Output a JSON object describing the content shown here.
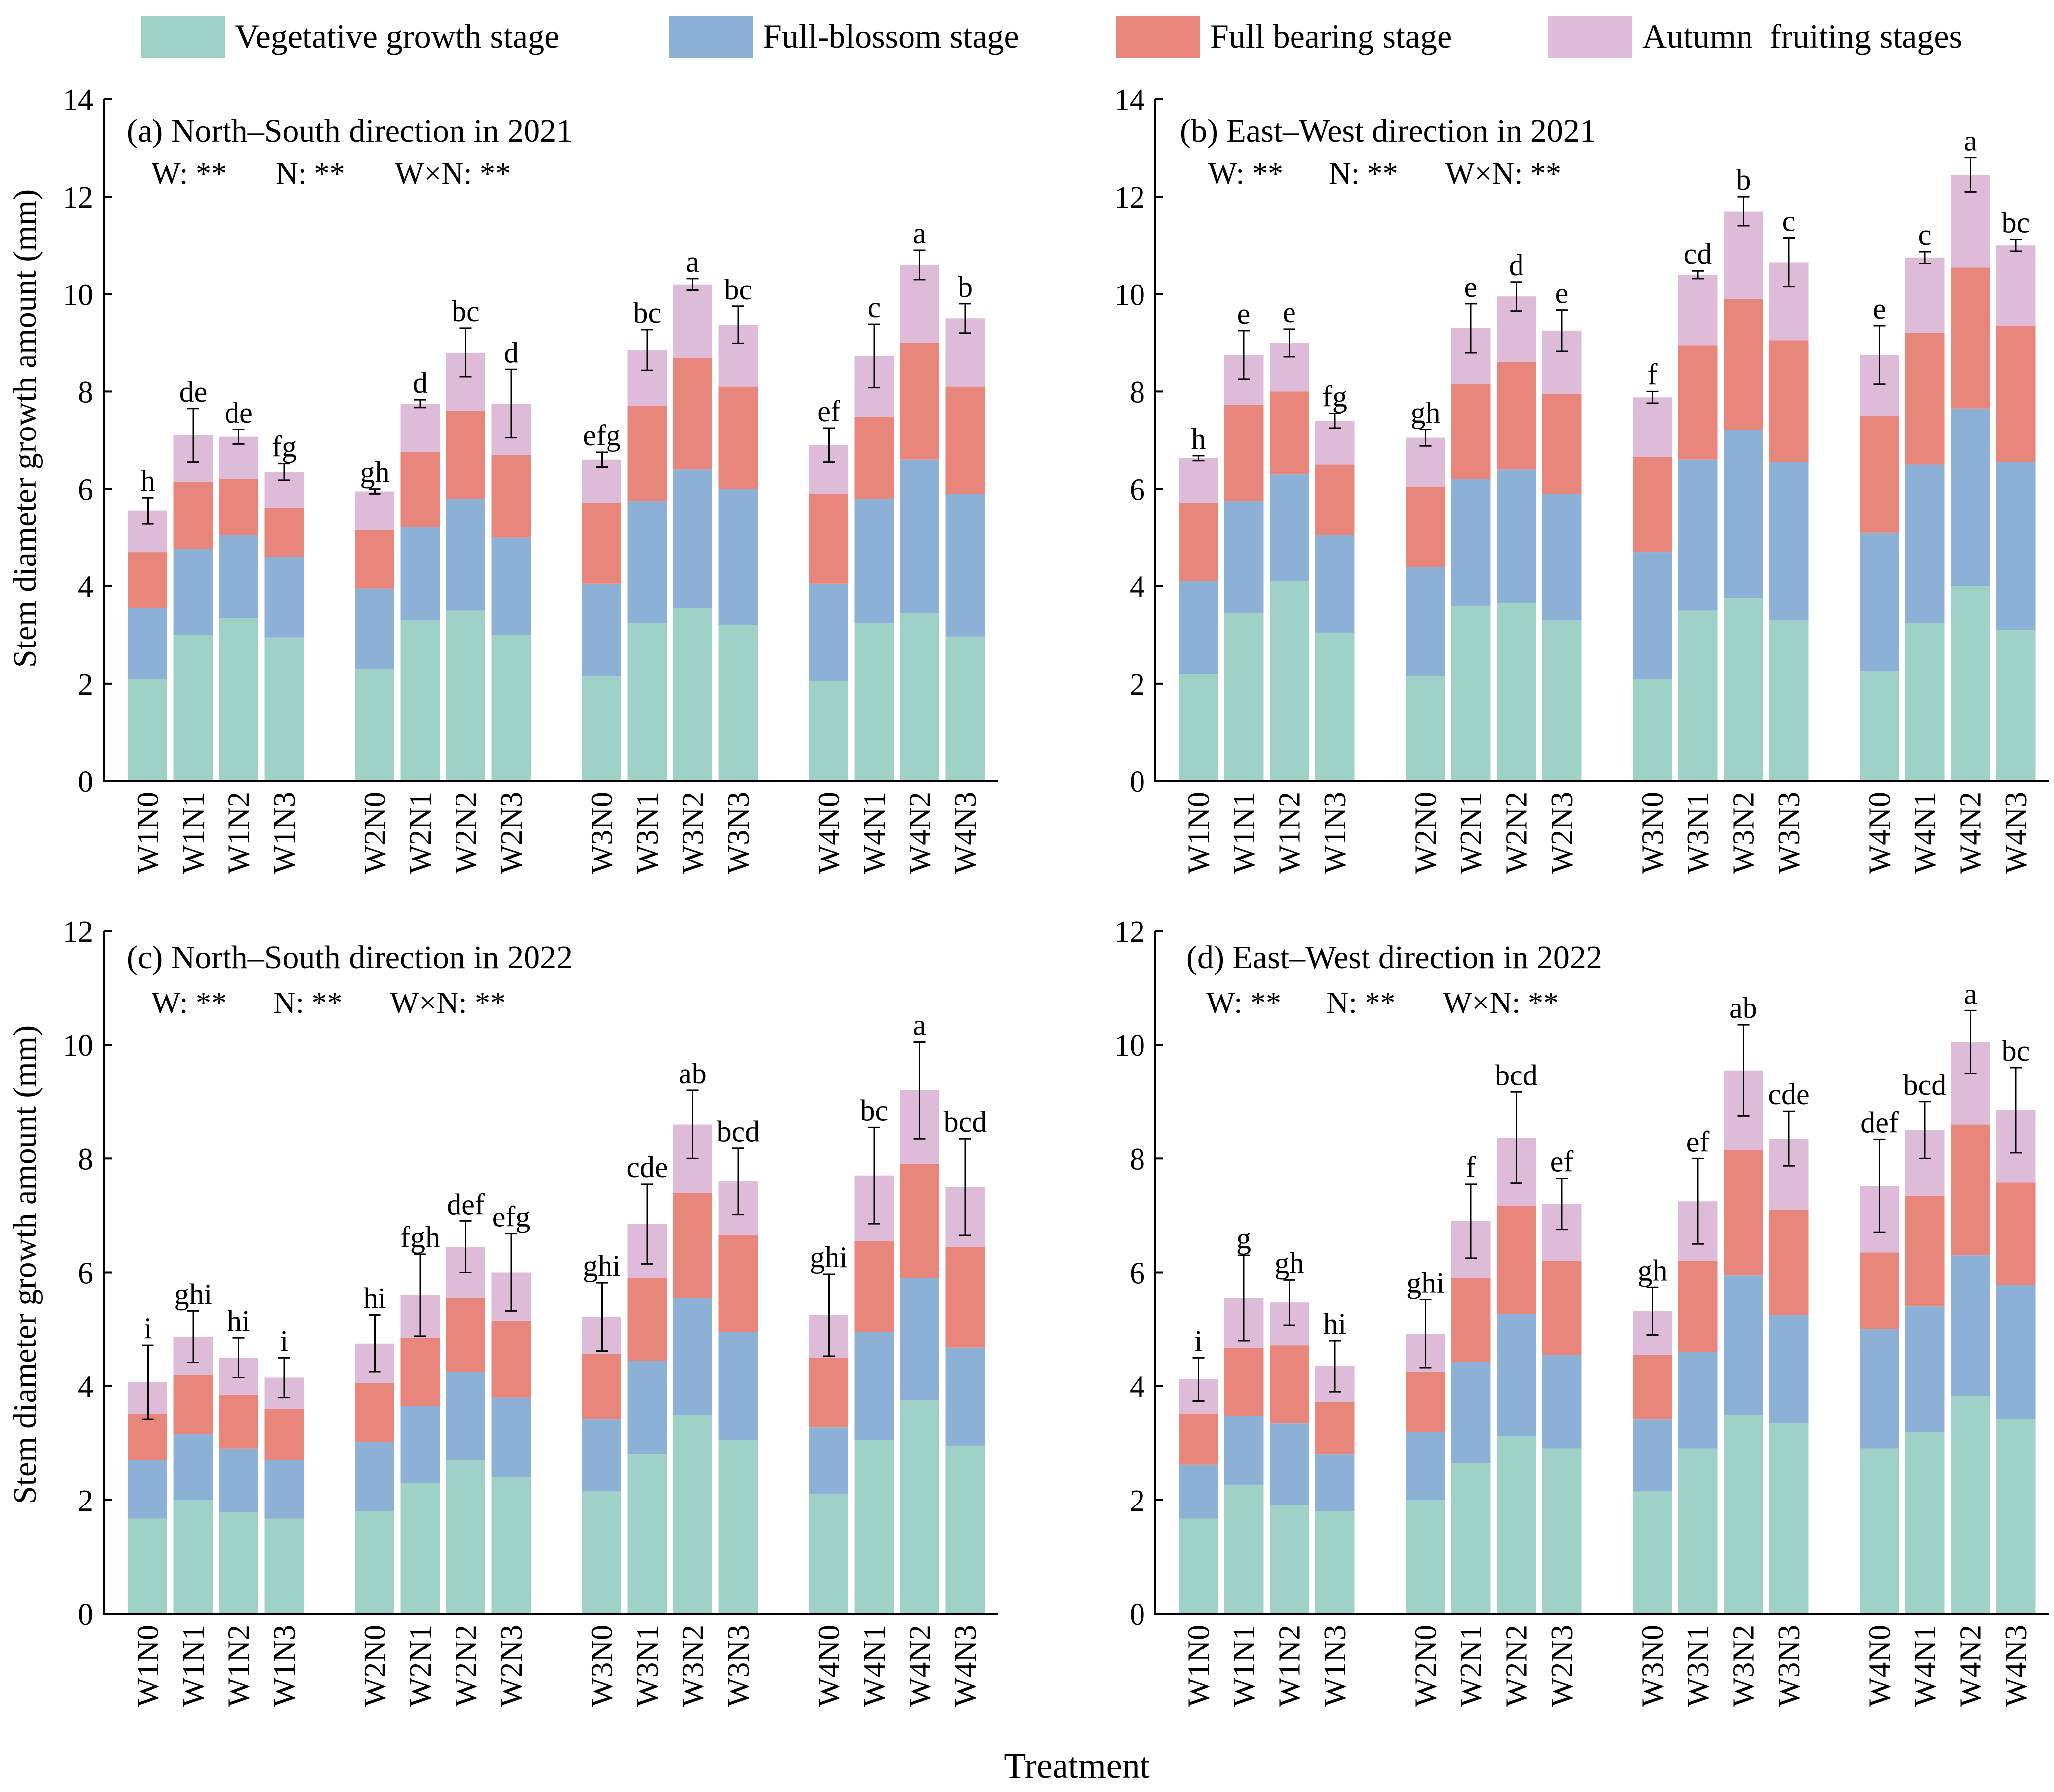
{
  "legend": [
    {
      "label": "Vegetative growth stage",
      "color": "#9fd2c7"
    },
    {
      "label": "Full-blossom stage",
      "color": "#8db0d6"
    },
    {
      "label": "Full bearing stage",
      "color": "#e8867c"
    },
    {
      "label": "Autumn  fruiting stages",
      "color": "#ddbbd9"
    }
  ],
  "xlabel": "Treatment",
  "ylabel": "Stem diameter growth amount (mm)",
  "chart_data": [
    {
      "type": "bar",
      "stacked": true,
      "title": "(a) North–South direction in 2021",
      "stats": {
        "w": "W: **",
        "n": "N: **",
        "wn": "W×N: **"
      },
      "ylim": [
        0,
        14
      ],
      "yticks": [
        "0",
        "2",
        "4",
        "6",
        "8",
        "10",
        "12",
        "14"
      ],
      "categories": [
        "W1N0",
        "W1N1",
        "W1N2",
        "W1N3",
        "W2N0",
        "W2N1",
        "W2N2",
        "W2N3",
        "W3N0",
        "W3N1",
        "W3N2",
        "W3N3",
        "W4N0",
        "W4N1",
        "W4N2",
        "W4N3"
      ],
      "series": [
        {
          "name": "Vegetative growth stage",
          "values": [
            2.1,
            3.0,
            3.35,
            2.95,
            2.3,
            3.3,
            3.5,
            3.0,
            2.15,
            3.25,
            3.55,
            3.2,
            2.05,
            3.25,
            3.45,
            2.97
          ]
        },
        {
          "name": "Full-blossom stage",
          "values": [
            1.45,
            1.77,
            1.7,
            1.65,
            1.65,
            1.92,
            2.3,
            2.0,
            1.9,
            2.5,
            2.85,
            2.8,
            2.0,
            2.55,
            3.15,
            2.93
          ]
        },
        {
          "name": "Full bearing stage",
          "values": [
            1.15,
            1.38,
            1.15,
            1.0,
            1.2,
            1.53,
            1.8,
            1.7,
            1.65,
            1.95,
            2.3,
            2.1,
            1.85,
            1.68,
            2.4,
            2.2
          ]
        },
        {
          "name": "Autumn  fruiting stages",
          "values": [
            0.85,
            0.95,
            0.87,
            0.75,
            0.8,
            1.0,
            1.2,
            1.05,
            0.9,
            1.15,
            1.5,
            1.27,
            1.0,
            1.25,
            1.6,
            1.4
          ]
        }
      ],
      "errors": [
        0.27,
        0.55,
        0.15,
        0.17,
        0.05,
        0.08,
        0.5,
        0.7,
        0.15,
        0.42,
        0.12,
        0.38,
        0.35,
        0.65,
        0.3,
        0.3
      ],
      "letters": [
        "h",
        "de",
        "de",
        "fg",
        "gh",
        "d",
        "bc",
        "d",
        "efg",
        "bc",
        "a",
        "bc",
        "ef",
        "c",
        "a",
        "b"
      ]
    },
    {
      "type": "bar",
      "stacked": true,
      "title": "(b) East–West direction in 2021",
      "stats": {
        "w": "W: **",
        "n": "N: **",
        "wn": "W×N: **"
      },
      "ylim": [
        0,
        14
      ],
      "yticks": [
        "0",
        "2",
        "4",
        "6",
        "8",
        "10",
        "12",
        "14"
      ],
      "categories": [
        "W1N0",
        "W1N1",
        "W1N2",
        "W1N3",
        "W2N0",
        "W2N1",
        "W2N2",
        "W2N3",
        "W3N0",
        "W3N1",
        "W3N2",
        "W3N3",
        "W4N0",
        "W4N1",
        "W4N2",
        "W4N3"
      ],
      "series": [
        {
          "name": "Vegetative growth stage",
          "values": [
            2.2,
            3.45,
            4.1,
            3.05,
            2.15,
            3.6,
            3.65,
            3.3,
            2.1,
            3.5,
            3.75,
            3.3,
            2.25,
            3.25,
            4.0,
            3.1
          ]
        },
        {
          "name": "Full-blossom stage",
          "values": [
            1.9,
            2.3,
            2.2,
            2.0,
            2.25,
            2.6,
            2.75,
            2.6,
            2.6,
            3.1,
            3.45,
            3.25,
            2.85,
            3.25,
            3.65,
            3.45
          ]
        },
        {
          "name": "Full bearing stage",
          "values": [
            1.6,
            1.98,
            1.7,
            1.45,
            1.65,
            1.95,
            2.2,
            2.05,
            1.95,
            2.35,
            2.7,
            2.5,
            2.4,
            2.7,
            2.9,
            2.8
          ]
        },
        {
          "name": "Autumn  fruiting stages",
          "values": [
            0.93,
            1.02,
            1.0,
            0.9,
            1.0,
            1.15,
            1.35,
            1.3,
            1.23,
            1.45,
            1.8,
            1.6,
            1.25,
            1.55,
            1.9,
            1.65
          ]
        }
      ],
      "errors": [
        0.05,
        0.5,
        0.28,
        0.15,
        0.17,
        0.5,
        0.3,
        0.42,
        0.12,
        0.08,
        0.3,
        0.5,
        0.6,
        0.12,
        0.35,
        0.12
      ],
      "letters": [
        "h",
        "e",
        "e",
        "fg",
        "gh",
        "e",
        "d",
        "e",
        "f",
        "cd",
        "b",
        "c",
        "e",
        "c",
        "a",
        "bc"
      ]
    },
    {
      "type": "bar",
      "stacked": true,
      "title": "(c) North–South direction in 2022",
      "stats": {
        "w": "W: **",
        "n": "N: **",
        "wn": "W×N: **"
      },
      "ylim": [
        0,
        12
      ],
      "yticks": [
        "0",
        "2",
        "4",
        "6",
        "8",
        "10",
        "12"
      ],
      "categories": [
        "W1N0",
        "W1N1",
        "W1N2",
        "W1N3",
        "W2N0",
        "W2N1",
        "W2N2",
        "W2N3",
        "W3N0",
        "W3N1",
        "W3N2",
        "W3N3",
        "W4N0",
        "W4N1",
        "W4N2",
        "W4N3"
      ],
      "series": [
        {
          "name": "Vegetative growth stage",
          "values": [
            1.67,
            2.0,
            1.78,
            1.67,
            1.8,
            2.3,
            2.7,
            2.4,
            2.15,
            2.8,
            3.5,
            3.05,
            2.1,
            3.05,
            3.75,
            2.95
          ]
        },
        {
          "name": "Full-blossom stage",
          "values": [
            1.03,
            1.15,
            1.12,
            1.03,
            1.22,
            1.35,
            1.55,
            1.4,
            1.27,
            1.65,
            2.05,
            1.9,
            1.18,
            1.9,
            2.15,
            1.73
          ]
        },
        {
          "name": "Full bearing stage",
          "values": [
            0.82,
            1.05,
            0.95,
            0.9,
            1.03,
            1.2,
            1.3,
            1.35,
            1.15,
            1.45,
            1.85,
            1.7,
            1.22,
            1.6,
            2.0,
            1.77
          ]
        },
        {
          "name": "Autumn  fruiting stages",
          "values": [
            0.55,
            0.67,
            0.65,
            0.55,
            0.7,
            0.75,
            0.9,
            0.85,
            0.65,
            0.95,
            1.2,
            0.95,
            0.75,
            1.15,
            1.3,
            1.05
          ]
        }
      ],
      "errors": [
        0.65,
        0.45,
        0.35,
        0.35,
        0.5,
        0.72,
        0.45,
        0.68,
        0.6,
        0.7,
        0.6,
        0.58,
        0.72,
        0.85,
        0.85,
        0.85
      ],
      "letters": [
        "i",
        "ghi",
        "hi",
        "i",
        "hi",
        "fgh",
        "def",
        "efg",
        "ghi",
        "cde",
        "ab",
        "bcd",
        "ghi",
        "bc",
        "a",
        "bcd"
      ]
    },
    {
      "type": "bar",
      "stacked": true,
      "title": "(d) East–West direction in 2022",
      "stats": {
        "w": "W: **",
        "n": "N: **",
        "wn": "W×N: **"
      },
      "ylim": [
        0,
        12
      ],
      "yticks": [
        "0",
        "2",
        "4",
        "6",
        "8",
        "10",
        "12"
      ],
      "categories": [
        "W1N0",
        "W1N1",
        "W1N2",
        "W1N3",
        "W2N0",
        "W2N1",
        "W2N2",
        "W2N3",
        "W3N0",
        "W3N1",
        "W3N2",
        "W3N3",
        "W4N0",
        "W4N1",
        "W4N2",
        "W4N3"
      ],
      "series": [
        {
          "name": "Vegetative growth stage",
          "values": [
            1.67,
            2.27,
            1.9,
            1.8,
            2.0,
            2.65,
            3.12,
            2.9,
            2.15,
            2.9,
            3.5,
            3.35,
            2.9,
            3.2,
            3.83,
            3.43
          ]
        },
        {
          "name": "Full-blossom stage",
          "values": [
            0.95,
            1.21,
            1.45,
            1.0,
            1.2,
            1.78,
            2.15,
            1.65,
            1.27,
            1.7,
            2.45,
            1.9,
            2.1,
            2.2,
            2.47,
            2.35
          ]
        },
        {
          "name": "Full bearing stage",
          "values": [
            0.9,
            1.2,
            1.37,
            0.92,
            1.05,
            1.47,
            1.9,
            1.65,
            1.13,
            1.6,
            2.2,
            1.85,
            1.35,
            1.95,
            2.3,
            1.8
          ]
        },
        {
          "name": "Autumn  fruiting stages",
          "values": [
            0.6,
            0.87,
            0.75,
            0.63,
            0.67,
            1.0,
            1.2,
            1.0,
            0.77,
            1.05,
            1.4,
            1.25,
            1.17,
            1.15,
            1.45,
            1.27
          ]
        }
      ],
      "errors": [
        0.38,
        0.75,
        0.4,
        0.45,
        0.6,
        0.65,
        0.8,
        0.45,
        0.42,
        0.75,
        0.8,
        0.48,
        0.82,
        0.5,
        0.55,
        0.75
      ],
      "letters": [
        "i",
        "g",
        "gh",
        "hi",
        "ghi",
        "f",
        "bcd",
        "ef",
        "gh",
        "ef",
        "ab",
        "cde",
        "def",
        "bcd",
        "a",
        "bc"
      ]
    }
  ]
}
